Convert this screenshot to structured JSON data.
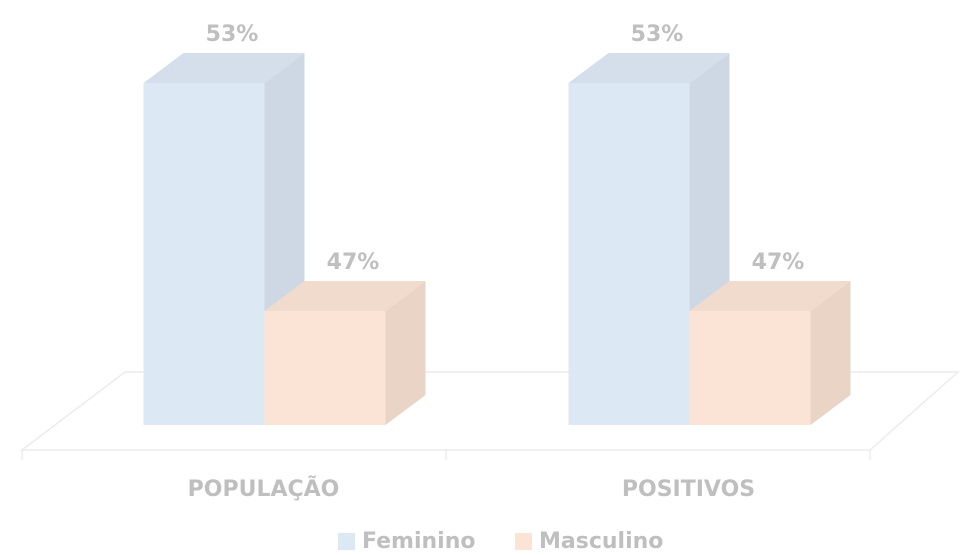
{
  "chart_data": {
    "type": "bar3d",
    "categories": [
      "POPULAÇÃO",
      "POSITIVOS"
    ],
    "series": [
      {
        "name": "Feminino",
        "color": "#dde8f5",
        "values": [
          53,
          53
        ],
        "value_labels": [
          "53%",
          "53%"
        ]
      },
      {
        "name": "Masculino",
        "color": "#fbe4d5",
        "values": [
          47,
          47
        ],
        "value_labels": [
          "47%",
          "47%"
        ]
      }
    ],
    "ylim": [
      44,
      54
    ],
    "legend": "bottom"
  }
}
